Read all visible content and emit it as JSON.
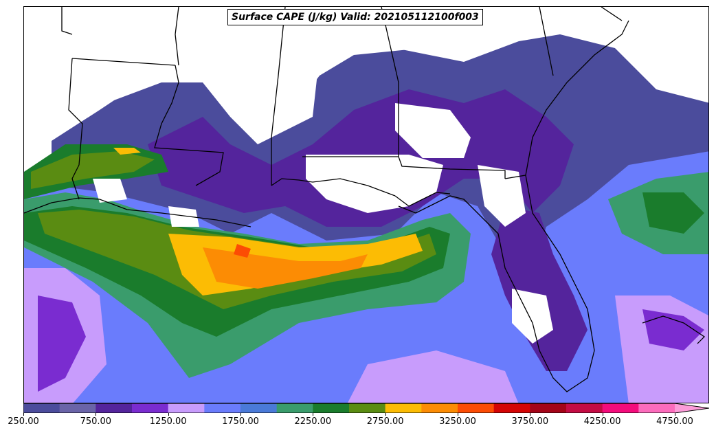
{
  "title": "Surface CAPE (J/kg) Valid: 202105112100f003",
  "colorbar": {
    "levels_start": 250,
    "levels_step": 250,
    "colors": [
      "#4b4c9c",
      "#6a64a8",
      "#54249c",
      "#7a2cd0",
      "#c89cfc",
      "#6a7cfc",
      "#4a7ad8",
      "#3a9c6c",
      "#1a7c2c",
      "#5a8c12",
      "#fcbc04",
      "#fc8c04",
      "#fc4c04",
      "#d40404",
      "#a40418",
      "#c40c44",
      "#f40c7c",
      "#fc6cbc"
    ],
    "extend_color": "#fc9cd8",
    "tick_labels": [
      "250.00",
      "750.00",
      "1250.00",
      "1750.00",
      "2250.00",
      "2750.00",
      "3250.00",
      "3750.00",
      "4250.00",
      "4750.00"
    ]
  },
  "colors": {
    "frame": "#000000",
    "background": "#ffffff",
    "land_lines": "#000000"
  }
}
